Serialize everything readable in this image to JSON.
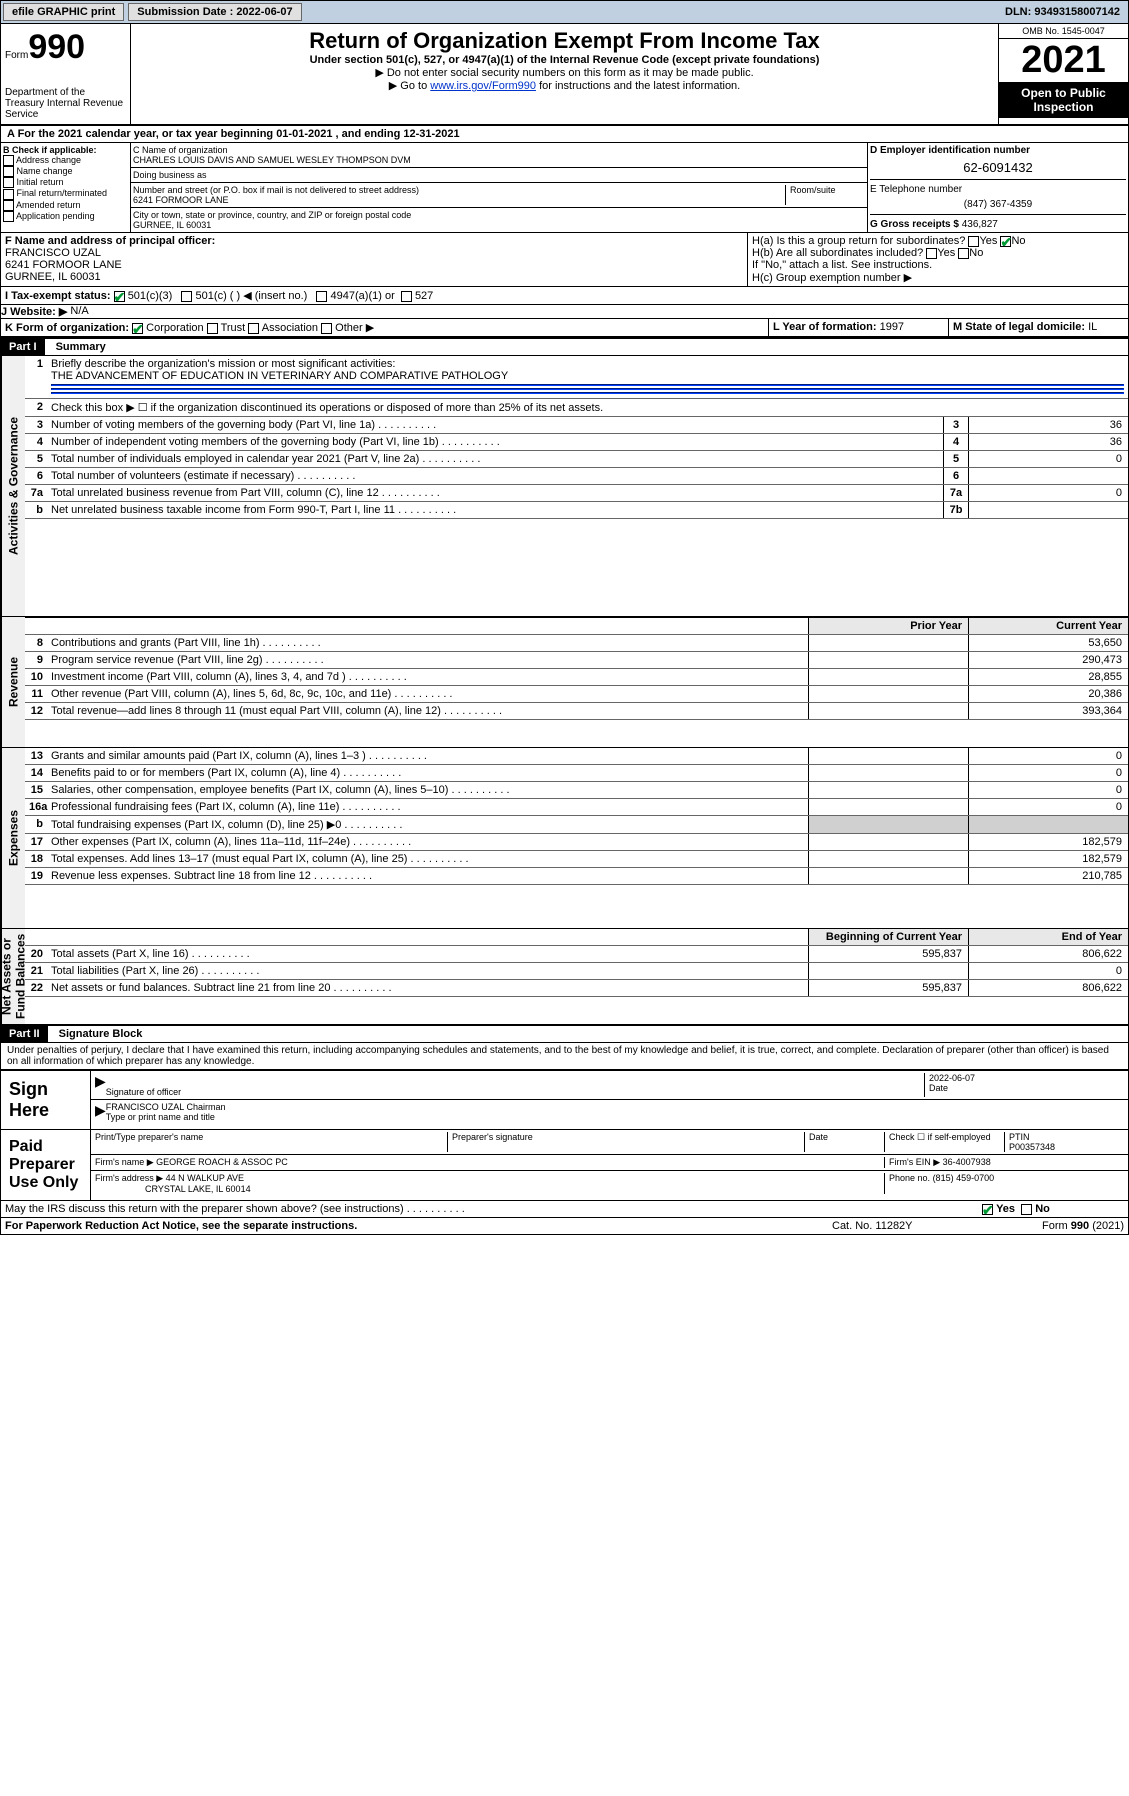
{
  "topbar": {
    "efile": "efile GRAPHIC print",
    "submission_label": "Submission Date : 2022-06-07",
    "dln": "DLN: 93493158007142"
  },
  "header": {
    "form_label": "Form",
    "form_number": "990",
    "title": "Return of Organization Exempt From Income Tax",
    "subtitle": "Under section 501(c), 527, or 4947(a)(1) of the Internal Revenue Code (except private foundations)",
    "note1": "▶ Do not enter social security numbers on this form as it may be made public.",
    "note2_prefix": "▶ Go to ",
    "note2_link": "www.irs.gov/Form990",
    "note2_suffix": " for instructions and the latest information.",
    "dept": "Department of the Treasury\nInternal Revenue Service",
    "omb": "OMB No. 1545-0047",
    "year": "2021",
    "inspect": "Open to Public Inspection"
  },
  "section_a": "A For the 2021 calendar year, or tax year beginning 01-01-2021    , and ending 12-31-2021",
  "box_b": {
    "label": "B Check if applicable:",
    "items": [
      "Address change",
      "Name change",
      "Initial return",
      "Final return/terminated",
      "Amended return",
      "Application pending"
    ]
  },
  "box_c": {
    "name_label": "C Name of organization",
    "name": "CHARLES LOUIS DAVIS AND SAMUEL WESLEY THOMPSON DVM",
    "dba_label": "Doing business as",
    "addr_label": "Number and street (or P.O. box if mail is not delivered to street address)",
    "room_label": "Room/suite",
    "addr": "6241 FORMOOR LANE",
    "city_label": "City or town, state or province, country, and ZIP or foreign postal code",
    "city": "GURNEE, IL  60031"
  },
  "box_d": {
    "label": "D Employer identification number",
    "value": "62-6091432"
  },
  "box_e": {
    "label": "E Telephone number",
    "value": "(847) 367-4359"
  },
  "box_g": {
    "label": "G Gross receipts $",
    "value": "436,827"
  },
  "box_f": {
    "label": "F Name and address of principal officer:",
    "name": "FRANCISCO UZAL",
    "addr": "6241 FORMOOR LANE",
    "city": "GURNEE, IL  60031"
  },
  "box_h": {
    "ha": "H(a)  Is this a group return for subordinates?",
    "hb": "H(b)  Are all subordinates included?",
    "hb_note": "If \"No,\" attach a list. See instructions.",
    "hc": "H(c)  Group exemption number ▶",
    "yes": "Yes",
    "no": "No"
  },
  "box_i": {
    "label": "I    Tax-exempt status:",
    "c3": "501(c)(3)",
    "c": "501(c) (  ) ◀ (insert no.)",
    "a1": "4947(a)(1) or",
    "s527": "527"
  },
  "box_j": {
    "label": "J    Website: ▶",
    "value": "N/A"
  },
  "box_k": {
    "label": "K Form of organization:",
    "corp": "Corporation",
    "trust": "Trust",
    "assoc": "Association",
    "other": "Other ▶"
  },
  "box_l": {
    "label": "L Year of formation:",
    "value": "1997"
  },
  "box_m": {
    "label": "M State of legal domicile:",
    "value": "IL"
  },
  "part1": {
    "hdr": "Part I",
    "title": "Summary",
    "line1_label": "Briefly describe the organization's mission or most significant activities:",
    "line1_value": "THE ADVANCEMENT OF EDUCATION IN VETERINARY AND COMPARATIVE PATHOLOGY",
    "line2": "Check this box ▶ ☐  if the organization discontinued its operations or disposed of more than 25% of its net assets.",
    "sections": {
      "gov": "Activities & Governance",
      "rev": "Revenue",
      "exp": "Expenses",
      "net": "Net Assets or Fund Balances"
    },
    "rows": [
      {
        "n": "3",
        "d": "Number of voting members of the governing body (Part VI, line 1a)",
        "rn": "3",
        "v": "36"
      },
      {
        "n": "4",
        "d": "Number of independent voting members of the governing body (Part VI, line 1b)",
        "rn": "4",
        "v": "36"
      },
      {
        "n": "5",
        "d": "Total number of individuals employed in calendar year 2021 (Part V, line 2a)",
        "rn": "5",
        "v": "0"
      },
      {
        "n": "6",
        "d": "Total number of volunteers (estimate if necessary)",
        "rn": "6",
        "v": ""
      },
      {
        "n": "7a",
        "d": "Total unrelated business revenue from Part VIII, column (C), line 12",
        "rn": "7a",
        "v": "0"
      },
      {
        "n": "b",
        "d": "Net unrelated business taxable income from Form 990-T, Part I, line 11",
        "rn": "7b",
        "v": ""
      }
    ],
    "money_hdr": {
      "prior": "Prior Year",
      "current": "Current Year"
    },
    "money_rows": [
      {
        "n": "8",
        "d": "Contributions and grants (Part VIII, line 1h)",
        "p": "",
        "c": "53,650"
      },
      {
        "n": "9",
        "d": "Program service revenue (Part VIII, line 2g)",
        "p": "",
        "c": "290,473"
      },
      {
        "n": "10",
        "d": "Investment income (Part VIII, column (A), lines 3, 4, and 7d )",
        "p": "",
        "c": "28,855"
      },
      {
        "n": "11",
        "d": "Other revenue (Part VIII, column (A), lines 5, 6d, 8c, 9c, 10c, and 11e)",
        "p": "",
        "c": "20,386"
      },
      {
        "n": "12",
        "d": "Total revenue—add lines 8 through 11 (must equal Part VIII, column (A), line 12)",
        "p": "",
        "c": "393,364"
      }
    ],
    "exp_rows": [
      {
        "n": "13",
        "d": "Grants and similar amounts paid (Part IX, column (A), lines 1–3 )",
        "p": "",
        "c": "0"
      },
      {
        "n": "14",
        "d": "Benefits paid to or for members (Part IX, column (A), line 4)",
        "p": "",
        "c": "0"
      },
      {
        "n": "15",
        "d": "Salaries, other compensation, employee benefits (Part IX, column (A), lines 5–10)",
        "p": "",
        "c": "0"
      },
      {
        "n": "16a",
        "d": "Professional fundraising fees (Part IX, column (A), line 11e)",
        "p": "",
        "c": "0"
      },
      {
        "n": "b",
        "d": "Total fundraising expenses (Part IX, column (D), line 25) ▶0",
        "p": "grey",
        "c": "grey"
      },
      {
        "n": "17",
        "d": "Other expenses (Part IX, column (A), lines 11a–11d, 11f–24e)",
        "p": "",
        "c": "182,579"
      },
      {
        "n": "18",
        "d": "Total expenses. Add lines 13–17 (must equal Part IX, column (A), line 25)",
        "p": "",
        "c": "182,579"
      },
      {
        "n": "19",
        "d": "Revenue less expenses. Subtract line 18 from line 12",
        "p": "",
        "c": "210,785"
      }
    ],
    "net_hdr": {
      "begin": "Beginning of Current Year",
      "end": "End of Year"
    },
    "net_rows": [
      {
        "n": "20",
        "d": "Total assets (Part X, line 16)",
        "p": "595,837",
        "c": "806,622"
      },
      {
        "n": "21",
        "d": "Total liabilities (Part X, line 26)",
        "p": "",
        "c": "0"
      },
      {
        "n": "22",
        "d": "Net assets or fund balances. Subtract line 21 from line 20",
        "p": "595,837",
        "c": "806,622"
      }
    ]
  },
  "part2": {
    "hdr": "Part II",
    "title": "Signature Block",
    "declaration": "Under penalties of perjury, I declare that I have examined this return, including accompanying schedules and statements, and to the best of my knowledge and belief, it is true, correct, and complete. Declaration of preparer (other than officer) is based on all information of which preparer has any knowledge."
  },
  "sign": {
    "label": "Sign Here",
    "sig_label": "Signature of officer",
    "date_label": "Date",
    "date": "2022-06-07",
    "name": "FRANCISCO UZAL Chairman",
    "name_label": "Type or print name and title"
  },
  "preparer": {
    "label": "Paid Preparer Use Only",
    "name_label": "Print/Type preparer's name",
    "sig_label": "Preparer's signature",
    "date_label": "Date",
    "check_label": "Check ☐ if self-employed",
    "ptin_label": "PTIN",
    "ptin": "P00357348",
    "firm_name_label": "Firm's name    ▶",
    "firm_name": "GEORGE ROACH & ASSOC PC",
    "firm_ein_label": "Firm's EIN ▶",
    "firm_ein": "36-4007938",
    "firm_addr_label": "Firm's address ▶",
    "firm_addr": "44 N WALKUP AVE",
    "firm_city": "CRYSTAL LAKE, IL  60014",
    "phone_label": "Phone no.",
    "phone": "(815) 459-0700"
  },
  "footer": {
    "discuss": "May the IRS discuss this return with the preparer shown above? (see instructions)",
    "yes": "Yes",
    "no": "No",
    "pra": "For Paperwork Reduction Act Notice, see the separate instructions.",
    "cat": "Cat. No. 11282Y",
    "form": "Form 990 (2021)"
  }
}
